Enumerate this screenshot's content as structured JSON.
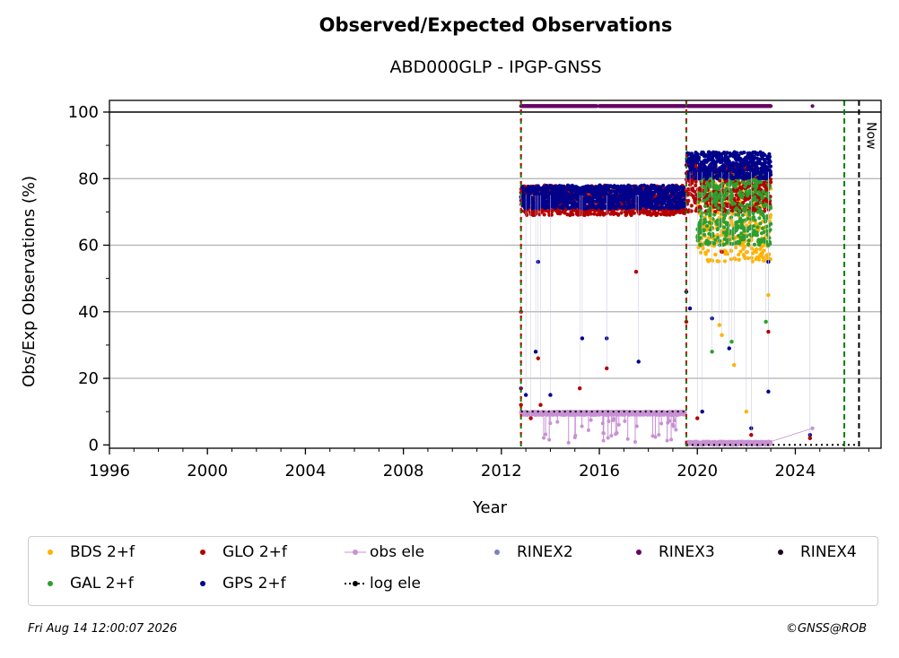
{
  "title": "Observed/Expected Observations",
  "subtitle": "ABD000GLP - IPGP-GNSS",
  "footer": {
    "timestamp": "Fri Aug 14 12:00:07 2026",
    "credit": "©GNSS@ROB"
  },
  "chart_data": {
    "type": "scatter",
    "xlabel": "Year",
    "ylabel": "Obs/Exp Observations (%)",
    "xlim": [
      1996,
      2027.5
    ],
    "ylim": [
      -1,
      103.5
    ],
    "xticks": [
      "1996",
      "2000",
      "2004",
      "2008",
      "2012",
      "2016",
      "2020",
      "2024"
    ],
    "yticks": [
      "0",
      "20",
      "40",
      "60",
      "80",
      "100"
    ],
    "grid": "y",
    "legend": "bottom",
    "now_label": "Now",
    "now_x": 2026.6,
    "reference_line_y": 100,
    "event_lines": [
      {
        "x": 2012.8,
        "style": "green-red-dashed"
      },
      {
        "x": 2019.55,
        "style": "green-red-dashed"
      },
      {
        "x": 2026.0,
        "style": "green-dashed"
      }
    ],
    "log_ele": [
      {
        "x": [
          2012.8,
          2019.55
        ],
        "y": [
          10,
          10
        ]
      },
      {
        "x": [
          2019.55,
          2026.6
        ],
        "y": [
          0,
          0
        ]
      }
    ],
    "series": [
      {
        "name": "BDS 2+f",
        "color": "#ffb300",
        "segments": [
          [
            2020.0,
            2023.0,
            55,
            80
          ]
        ]
      },
      {
        "name": "GLO 2+f",
        "color": "#b30000",
        "segments": [
          [
            2012.8,
            2019.5,
            69,
            78
          ],
          [
            2019.55,
            2023.0,
            70,
            84
          ]
        ]
      },
      {
        "name": "obs ele",
        "color": "#c891d3",
        "segments": [
          [
            2012.8,
            2019.5,
            9,
            10
          ],
          [
            2019.55,
            2023.0,
            0,
            1
          ]
        ],
        "extra": [
          [
            2024.7,
            5
          ]
        ]
      },
      {
        "name": "RINEX2",
        "color": "#7f7fbf",
        "segments": []
      },
      {
        "name": "RINEX3",
        "color": "#660066",
        "segments": [
          [
            2012.8,
            2015.9,
            101.8,
            101.8
          ],
          [
            2016.0,
            2019.5,
            101.8,
            101.8
          ],
          [
            2019.6,
            2023.0,
            101.8,
            101.8
          ]
        ],
        "extra": [
          [
            2024.7,
            101.8
          ]
        ]
      },
      {
        "name": "RINEX4",
        "color": "#1a0a1a",
        "segments": []
      },
      {
        "name": "GAL 2+f",
        "color": "#2e9e2e",
        "segments": [
          [
            2020.0,
            2023.0,
            60,
            82
          ]
        ]
      },
      {
        "name": "GPS 2+f",
        "color": "#00008b",
        "segments": [
          [
            2012.8,
            2019.5,
            71,
            78
          ],
          [
            2019.55,
            2023.0,
            80,
            88
          ]
        ]
      },
      {
        "name": "log ele",
        "color": "#000000",
        "segments": []
      }
    ],
    "outliers": [
      {
        "series": "GPS 2+f",
        "points": [
          [
            2012.8,
            17
          ],
          [
            2013.0,
            15
          ],
          [
            2013.4,
            28
          ],
          [
            2013.5,
            55
          ],
          [
            2014.0,
            15
          ],
          [
            2015.3,
            32
          ],
          [
            2016.3,
            32
          ],
          [
            2017.6,
            25
          ],
          [
            2019.55,
            46
          ],
          [
            2019.7,
            41
          ],
          [
            2020.2,
            10
          ],
          [
            2020.6,
            38
          ],
          [
            2021.3,
            29
          ],
          [
            2022.2,
            5
          ],
          [
            2022.9,
            16
          ],
          [
            2022.9,
            55
          ],
          [
            2024.6,
            3
          ]
        ]
      },
      {
        "series": "GLO 2+f",
        "points": [
          [
            2012.8,
            40
          ],
          [
            2012.8,
            12
          ],
          [
            2013.2,
            8
          ],
          [
            2013.5,
            26
          ],
          [
            2013.6,
            12
          ],
          [
            2015.2,
            17
          ],
          [
            2016.3,
            23
          ],
          [
            2017.5,
            52
          ],
          [
            2019.55,
            37
          ],
          [
            2020.0,
            8
          ],
          [
            2021.0,
            58
          ],
          [
            2022.2,
            3
          ],
          [
            2022.9,
            34
          ],
          [
            2024.6,
            2
          ]
        ]
      },
      {
        "series": "BDS 2+f",
        "points": [
          [
            2020.9,
            36
          ],
          [
            2021.0,
            33
          ],
          [
            2021.5,
            24
          ],
          [
            2022.9,
            45
          ],
          [
            2022.0,
            10
          ]
        ]
      },
      {
        "series": "GAL 2+f",
        "points": [
          [
            2020.6,
            28
          ],
          [
            2021.4,
            31
          ],
          [
            2022.8,
            37
          ],
          [
            2022.9,
            60
          ]
        ]
      }
    ]
  },
  "legend": {
    "items": [
      "BDS 2+f",
      "GLO 2+f",
      "obs ele",
      "RINEX2",
      "RINEX3",
      "RINEX4",
      "GAL 2+f",
      "GPS 2+f",
      "log ele"
    ]
  }
}
